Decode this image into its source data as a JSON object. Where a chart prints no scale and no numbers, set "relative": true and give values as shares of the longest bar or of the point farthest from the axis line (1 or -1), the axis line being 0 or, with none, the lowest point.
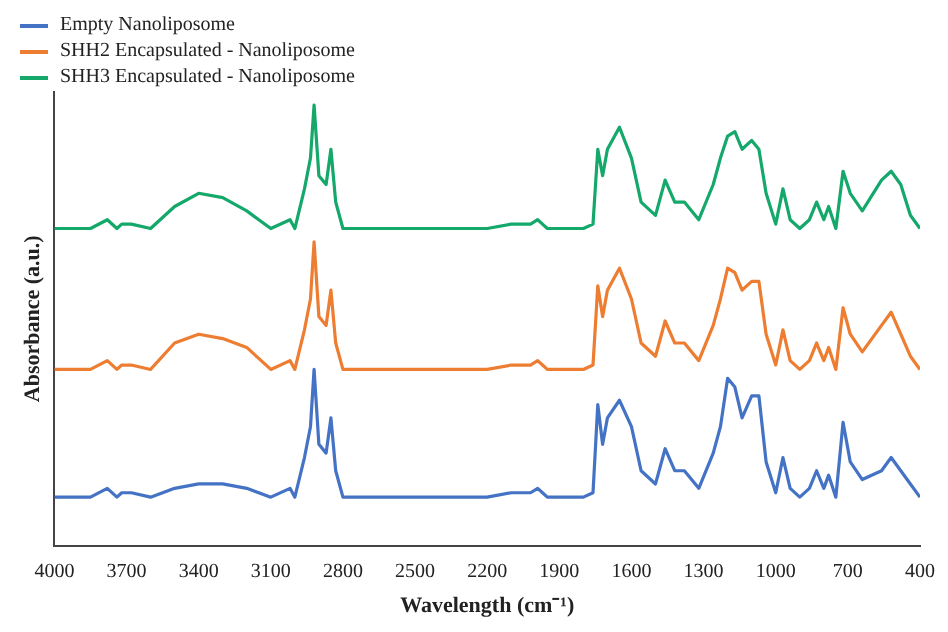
{
  "chart_data": {
    "type": "line",
    "relative": true,
    "xlabel": "Wavelength (cm⁻¹)",
    "ylabel": "Absorbance (a.u.)",
    "xlim": [
      4000,
      400
    ],
    "xticks": [
      4000,
      3700,
      3400,
      3100,
      2800,
      2500,
      2200,
      1900,
      1600,
      1300,
      1000,
      700,
      400
    ],
    "legend": "top left",
    "grid": false,
    "marker": "none",
    "line_style": "solid",
    "x": [
      4000,
      3900,
      3850,
      3780,
      3740,
      3720,
      3680,
      3600,
      3500,
      3400,
      3300,
      3200,
      3100,
      3020,
      3000,
      2960,
      2935,
      2920,
      2900,
      2870,
      2850,
      2830,
      2800,
      2750,
      2600,
      2400,
      2200,
      2100,
      2060,
      2020,
      1990,
      1970,
      1950,
      1900,
      1850,
      1800,
      1760,
      1740,
      1720,
      1700,
      1650,
      1600,
      1560,
      1500,
      1460,
      1420,
      1380,
      1320,
      1260,
      1230,
      1200,
      1170,
      1140,
      1100,
      1070,
      1040,
      1000,
      970,
      940,
      900,
      860,
      830,
      800,
      780,
      750,
      720,
      690,
      640,
      560,
      520,
      480,
      440,
      400
    ],
    "series": [
      {
        "name": "Empty Nanoliposome",
        "color": "#4472c4",
        "values": [
          0.11,
          0.11,
          0.11,
          0.13,
          0.11,
          0.12,
          0.12,
          0.11,
          0.13,
          0.14,
          0.14,
          0.13,
          0.11,
          0.13,
          0.11,
          0.2,
          0.27,
          0.4,
          0.23,
          0.21,
          0.29,
          0.17,
          0.11,
          0.11,
          0.11,
          0.11,
          0.11,
          0.12,
          0.12,
          0.12,
          0.13,
          0.12,
          0.11,
          0.11,
          0.11,
          0.11,
          0.12,
          0.32,
          0.23,
          0.29,
          0.33,
          0.27,
          0.17,
          0.14,
          0.22,
          0.17,
          0.17,
          0.13,
          0.21,
          0.27,
          0.38,
          0.36,
          0.29,
          0.34,
          0.34,
          0.19,
          0.12,
          0.2,
          0.13,
          0.11,
          0.13,
          0.17,
          0.13,
          0.16,
          0.11,
          0.28,
          0.19,
          0.15,
          0.17,
          0.2,
          0.17,
          0.14,
          0.11
        ]
      },
      {
        "name": "SHH2 Encapsulated - Nanoliposome",
        "color": "#ed7d31",
        "values": [
          0.4,
          0.4,
          0.4,
          0.42,
          0.4,
          0.41,
          0.41,
          0.4,
          0.46,
          0.48,
          0.47,
          0.45,
          0.4,
          0.42,
          0.4,
          0.49,
          0.56,
          0.69,
          0.52,
          0.5,
          0.58,
          0.46,
          0.4,
          0.4,
          0.4,
          0.4,
          0.4,
          0.41,
          0.41,
          0.41,
          0.42,
          0.41,
          0.4,
          0.4,
          0.4,
          0.4,
          0.41,
          0.59,
          0.52,
          0.58,
          0.63,
          0.56,
          0.46,
          0.43,
          0.51,
          0.46,
          0.46,
          0.42,
          0.5,
          0.56,
          0.63,
          0.62,
          0.58,
          0.6,
          0.6,
          0.48,
          0.41,
          0.49,
          0.42,
          0.4,
          0.42,
          0.46,
          0.42,
          0.45,
          0.4,
          0.54,
          0.48,
          0.44,
          0.5,
          0.53,
          0.48,
          0.43,
          0.4
        ]
      },
      {
        "name": "SHH3 Encapsulated - Nanoliposome",
        "color": "#14a86b",
        "values": [
          0.72,
          0.72,
          0.72,
          0.74,
          0.72,
          0.73,
          0.73,
          0.72,
          0.77,
          0.8,
          0.79,
          0.76,
          0.72,
          0.74,
          0.72,
          0.81,
          0.88,
          1.0,
          0.84,
          0.82,
          0.9,
          0.78,
          0.72,
          0.72,
          0.72,
          0.72,
          0.72,
          0.73,
          0.73,
          0.73,
          0.74,
          0.73,
          0.72,
          0.72,
          0.72,
          0.72,
          0.73,
          0.9,
          0.84,
          0.9,
          0.95,
          0.88,
          0.78,
          0.75,
          0.83,
          0.78,
          0.78,
          0.74,
          0.82,
          0.88,
          0.93,
          0.94,
          0.9,
          0.92,
          0.9,
          0.8,
          0.73,
          0.81,
          0.74,
          0.72,
          0.74,
          0.78,
          0.74,
          0.77,
          0.72,
          0.85,
          0.8,
          0.76,
          0.83,
          0.85,
          0.82,
          0.75,
          0.72
        ]
      }
    ]
  }
}
